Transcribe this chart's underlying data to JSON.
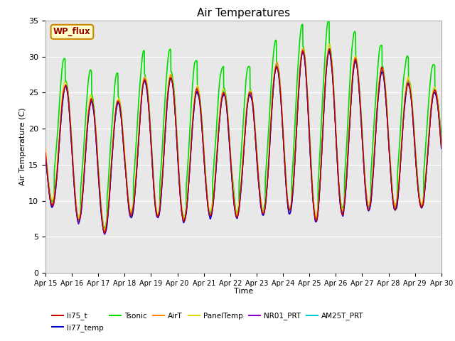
{
  "title": "Air Temperatures",
  "xlabel": "Time",
  "ylabel": "Air Temperature (C)",
  "ylim": [
    0,
    35
  ],
  "xlim": [
    0,
    15
  ],
  "xtick_labels": [
    "Apr 15",
    "Apr 16",
    "Apr 17",
    "Apr 18",
    "Apr 19",
    "Apr 20",
    "Apr 21",
    "Apr 22",
    "Apr 23",
    "Apr 24",
    "Apr 25",
    "Apr 26",
    "Apr 27",
    "Apr 28",
    "Apr 29",
    "Apr 30"
  ],
  "series": {
    "li75_t": {
      "color": "#cc0000",
      "lw": 1.0
    },
    "li77_temp": {
      "color": "#0000cc",
      "lw": 1.0
    },
    "Tsonic": {
      "color": "#00dd00",
      "lw": 1.2
    },
    "AirT": {
      "color": "#ff8800",
      "lw": 1.0
    },
    "PanelTemp": {
      "color": "#dddd00",
      "lw": 1.0
    },
    "NR01_PRT": {
      "color": "#8800cc",
      "lw": 1.0
    },
    "AM25T_PRT": {
      "color": "#00cccc",
      "lw": 1.2
    }
  },
  "annotation_text": "WP_flux",
  "annotation_bbox_fc": "#ffffcc",
  "annotation_bbox_ec": "#cc8800",
  "bg_color": "#e8e8e8",
  "title_fontsize": 11,
  "figsize": [
    6.4,
    4.8
  ],
  "dpi": 100
}
